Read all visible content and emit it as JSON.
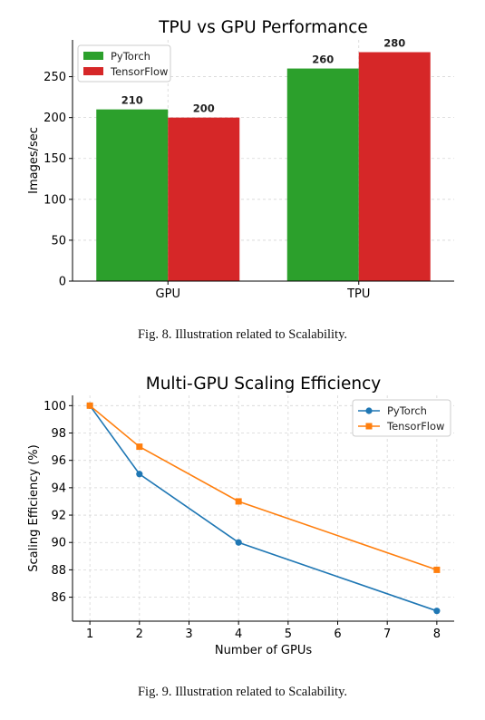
{
  "chart_data": [
    {
      "type": "bar",
      "title": "TPU vs GPU Performance",
      "xlabel": "",
      "ylabel": "Images/sec",
      "categories": [
        "GPU",
        "TPU"
      ],
      "series": [
        {
          "name": "PyTorch",
          "values": [
            210,
            260
          ],
          "color": "#2ca02c"
        },
        {
          "name": "TensorFlow",
          "values": [
            200,
            280
          ],
          "color": "#d62728"
        }
      ],
      "ylim": [
        0,
        295
      ],
      "yticks": [
        0,
        50,
        100,
        150,
        200,
        250
      ],
      "grid": true,
      "legend": "top-left",
      "data_labels": true
    },
    {
      "type": "line",
      "title": "Multi-GPU Scaling Efficiency",
      "xlabel": "Number of GPUs",
      "ylabel": "Scaling Efficiency (%)",
      "series": [
        {
          "name": "PyTorch",
          "x": [
            1,
            2,
            4,
            8
          ],
          "values": [
            100,
            95,
            90,
            85
          ],
          "color": "#1f77b4",
          "marker": "circle"
        },
        {
          "name": "TensorFlow",
          "x": [
            1,
            2,
            4,
            8
          ],
          "values": [
            100,
            97,
            93,
            88
          ],
          "color": "#ff7f0e",
          "marker": "square"
        }
      ],
      "xlim": [
        0.65,
        8.35
      ],
      "ylim": [
        84.25,
        100.75
      ],
      "xticks": [
        1,
        2,
        3,
        4,
        5,
        6,
        7,
        8
      ],
      "yticks": [
        86,
        88,
        90,
        92,
        94,
        96,
        98,
        100
      ],
      "grid": true,
      "legend": "top-right"
    }
  ],
  "captions": {
    "fig8": "Fig. 8.  Illustration related to Scalability.",
    "fig9": "Fig. 9.  Illustration related to Scalability."
  }
}
